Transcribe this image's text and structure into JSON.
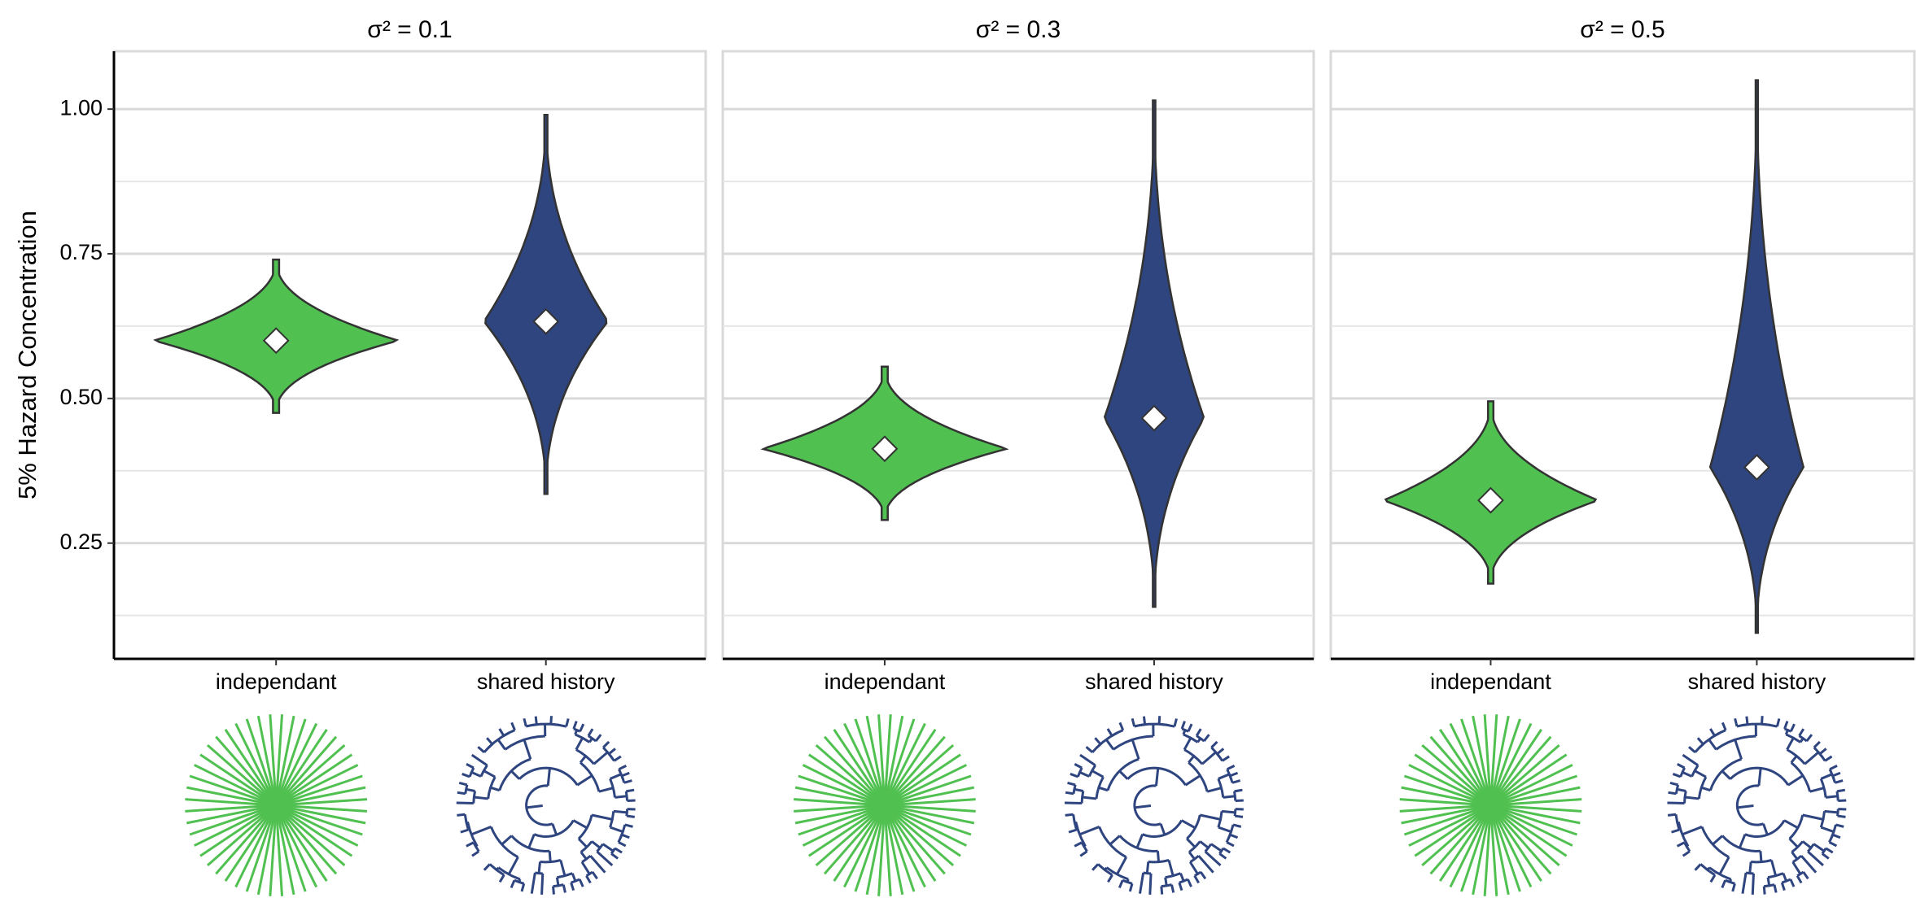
{
  "chart_data": [
    {
      "type": "violin",
      "title": "σ² = 0.1",
      "y_label": "5% Hazard Concentration",
      "categories": [
        "independant",
        "shared history"
      ],
      "colors": [
        "#50c150",
        "#2f4580"
      ],
      "mins": [
        0.475,
        0.335
      ],
      "maxs": [
        0.74,
        0.99
      ],
      "means": [
        0.6,
        0.633
      ],
      "ylim": [
        0.05,
        1.1
      ],
      "yticks": [
        {
          "value": 0.25,
          "label": "0.25"
        },
        {
          "value": 0.5,
          "label": "0.50"
        },
        {
          "value": 0.75,
          "label": "0.75"
        },
        {
          "value": 1,
          "label": "1.00"
        }
      ],
      "minor_yticks": [
        0.125,
        0.375,
        0.625,
        0.875
      ],
      "grid": true
    },
    {
      "type": "violin",
      "title": "σ² = 0.3",
      "categories": [
        "independant",
        "shared history"
      ],
      "colors": [
        "#50c150",
        "#2f4580"
      ],
      "mins": [
        0.29,
        0.14
      ],
      "maxs": [
        0.555,
        1.015
      ],
      "means": [
        0.413,
        0.466
      ],
      "ylim": [
        0.05,
        1.1
      ],
      "yticks": [
        0.25,
        0.5,
        0.75,
        1
      ],
      "minor_yticks": [
        0.125,
        0.375,
        0.625,
        0.875
      ],
      "grid": true
    },
    {
      "type": "violin",
      "title": "σ² = 0.5",
      "categories": [
        "independant",
        "shared history"
      ],
      "colors": [
        "#50c150",
        "#2f4580"
      ],
      "mins": [
        0.18,
        0.095
      ],
      "maxs": [
        0.495,
        1.05
      ],
      "means": [
        0.324,
        0.381
      ],
      "ylim": [
        0.05,
        1.1
      ],
      "yticks": [
        0.25,
        0.5,
        0.75,
        1
      ],
      "minor_yticks": [
        0.125,
        0.375,
        0.625,
        0.875
      ],
      "grid": true
    }
  ]
}
